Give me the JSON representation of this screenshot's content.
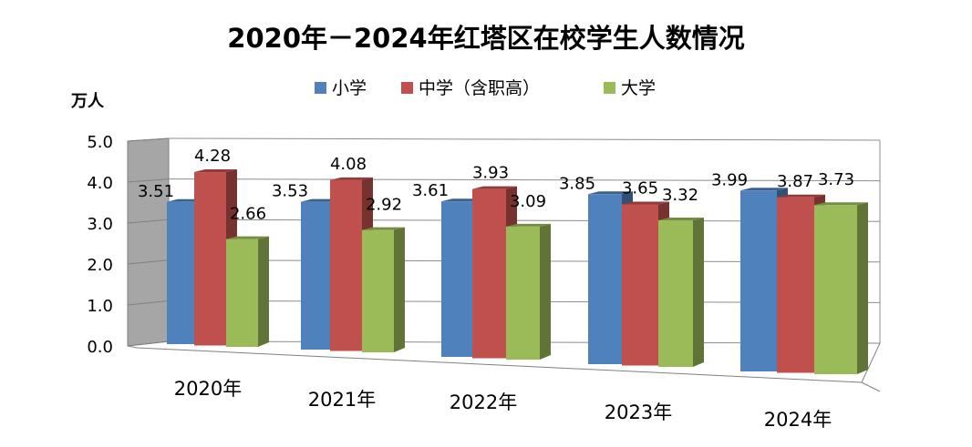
{
  "chart_data": {
    "type": "bar",
    "title": "2020年－2024年红塔区在校学生人数情况",
    "ylabel": "万人",
    "xlabel": "",
    "categories": [
      "2020年",
      "2021年",
      "2022年",
      "2023年",
      "2024年"
    ],
    "series": [
      {
        "name": "小学",
        "color": "#4f81bd",
        "values": [
          3.51,
          3.53,
          3.61,
          3.85,
          3.99
        ]
      },
      {
        "name": "中学（含职高）",
        "color": "#c0504d",
        "values": [
          4.28,
          4.08,
          3.93,
          3.65,
          3.87
        ]
      },
      {
        "name": "大学",
        "color": "#9bbb59",
        "values": [
          2.66,
          2.92,
          3.09,
          3.32,
          3.73
        ]
      }
    ],
    "ylim": [
      0,
      5
    ],
    "yticks": [
      "0.0",
      "1.0",
      "2.0",
      "3.0",
      "4.0",
      "5.0"
    ],
    "grid": true,
    "legend": "top",
    "style": "3d-clustered-column"
  }
}
